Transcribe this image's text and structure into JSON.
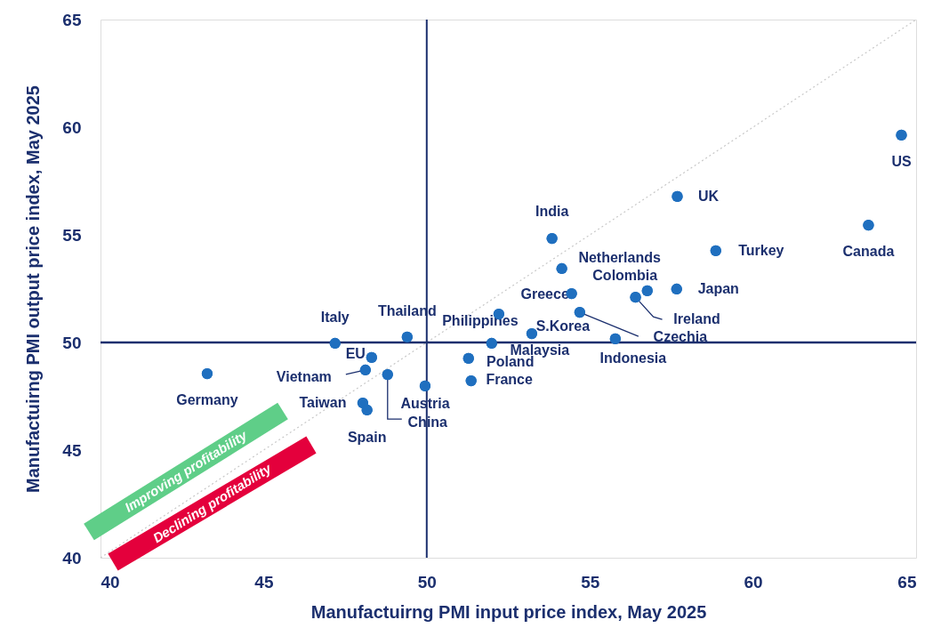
{
  "chart_data": {
    "type": "scatter",
    "xlabel": "Manufactuirng PMI input price index, May 2025",
    "ylabel": "Manufactuirng PMI output price index, May 2025",
    "xlim": [
      40,
      65
    ],
    "xticks": [
      40,
      45,
      50,
      55,
      60,
      65
    ],
    "ylim": [
      40,
      65
    ],
    "yticks": [
      40,
      45,
      50,
      55,
      60,
      65
    ],
    "grid": false,
    "marker": "circle",
    "x": [
      64.55,
      57.68,
      63.54,
      58.86,
      53.84,
      54.14,
      56.76,
      57.66,
      54.44,
      56.4,
      54.69,
      52.21,
      53.22,
      55.78,
      49.4,
      47.19,
      51.99,
      48.31,
      51.28,
      48.12,
      48.8,
      43.27,
      49.95,
      51.36,
      48.04,
      48.17
    ],
    "series": [
      {
        "color": "#1f6fbf",
        "values": [
          59.63,
          56.78,
          55.45,
          54.26,
          54.83,
          53.43,
          52.4,
          52.48,
          52.27,
          52.1,
          51.4,
          51.32,
          50.41,
          50.17,
          50.25,
          49.96,
          49.96,
          49.3,
          49.26,
          48.72,
          48.51,
          48.55,
          47.98,
          48.22,
          47.19,
          46.86
        ]
      },
      {
        "type": "line",
        "marker": "none",
        "color": "#c8c8c8",
        "line_style": "dotted",
        "x": [
          40,
          65
        ],
        "values": [
          40,
          65
        ]
      }
    ],
    "ref_lines": [
      {
        "axis": "x",
        "value": 50,
        "color": "#1b2f6e"
      },
      {
        "axis": "y",
        "value": 50,
        "color": "#1b2f6e"
      }
    ],
    "annotations": [
      {
        "text": "US",
        "x": 64.55,
        "y": 59.63
      },
      {
        "text": "UK",
        "x": 57.68,
        "y": 56.78
      },
      {
        "text": "Canada",
        "x": 63.54,
        "y": 55.45
      },
      {
        "text": "Turkey",
        "x": 58.86,
        "y": 54.26
      },
      {
        "text": "India",
        "x": 53.84,
        "y": 54.83
      },
      {
        "text": "Netherlands",
        "x": 54.14,
        "y": 53.43
      },
      {
        "text": "Colombia",
        "x": 56.76,
        "y": 52.4
      },
      {
        "text": "Japan",
        "x": 57.66,
        "y": 52.48
      },
      {
        "text": "Greece",
        "x": 54.44,
        "y": 52.27
      },
      {
        "text": "Ireland",
        "x": 56.4,
        "y": 52.1
      },
      {
        "text": "Czechia",
        "x": 54.69,
        "y": 51.4
      },
      {
        "text": "Philippines",
        "x": 52.21,
        "y": 51.32
      },
      {
        "text": "S.Korea",
        "x": 53.22,
        "y": 50.41
      },
      {
        "text": "Indonesia",
        "x": 55.78,
        "y": 50.17
      },
      {
        "text": "Thailand",
        "x": 49.4,
        "y": 50.25
      },
      {
        "text": "Italy",
        "x": 47.19,
        "y": 49.96
      },
      {
        "text": "Malaysia",
        "x": 51.99,
        "y": 49.96
      },
      {
        "text": "EU",
        "x": 48.31,
        "y": 49.3
      },
      {
        "text": "Poland",
        "x": 51.28,
        "y": 49.26
      },
      {
        "text": "Vietnam",
        "x": 48.12,
        "y": 48.72
      },
      {
        "text": "China",
        "x": 48.8,
        "y": 48.51
      },
      {
        "text": "Germany",
        "x": 43.27,
        "y": 48.55
      },
      {
        "text": "Austria",
        "x": 49.95,
        "y": 47.98
      },
      {
        "text": "France",
        "x": 51.36,
        "y": 48.22
      },
      {
        "text": "Taiwan",
        "x": 48.04,
        "y": 47.19
      },
      {
        "text": "Spain",
        "x": 48.17,
        "y": 46.86
      },
      "Improving profitability",
      "Declining profitability"
    ]
  }
}
